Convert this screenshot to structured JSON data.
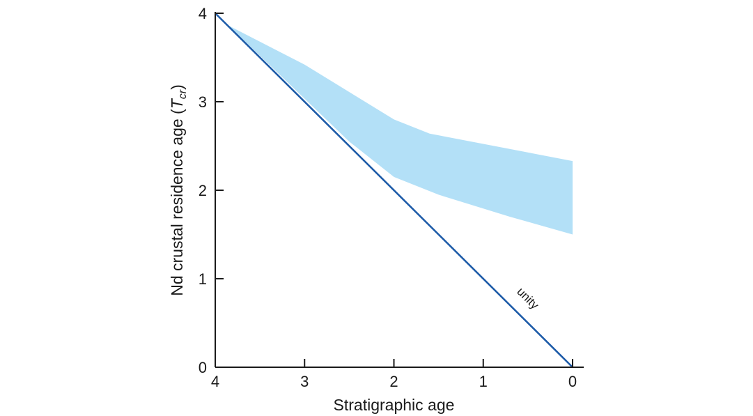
{
  "chart_data": {
    "type": "area",
    "xlabel": "Stratigraphic age",
    "ylabel": {
      "prefix": "Nd crustal residence age (",
      "var": "T",
      "sub": "cr",
      "suffix": ")"
    },
    "xlim": [
      4,
      0
    ],
    "ylim": [
      0,
      4
    ],
    "x_ticks": [
      4,
      3,
      2,
      1,
      0
    ],
    "y_ticks": [
      0,
      1,
      2,
      3,
      4
    ],
    "band": {
      "color": "#b3e0f7",
      "upper": [
        [
          3.85,
          3.86
        ],
        [
          3.0,
          3.42
        ],
        [
          2.0,
          2.8
        ],
        [
          1.6,
          2.64
        ],
        [
          0.0,
          2.33
        ]
      ],
      "lower": [
        [
          3.85,
          3.86
        ],
        [
          2.5,
          2.55
        ],
        [
          2.0,
          2.15
        ],
        [
          1.5,
          1.95
        ],
        [
          0.7,
          1.7
        ],
        [
          0.0,
          1.5
        ]
      ]
    },
    "unity_line": {
      "x": [
        4,
        0
      ],
      "y": [
        4,
        0
      ],
      "color": "#1d5ba8",
      "label": "unity",
      "label_at": [
        0.5,
        0.7
      ]
    }
  }
}
